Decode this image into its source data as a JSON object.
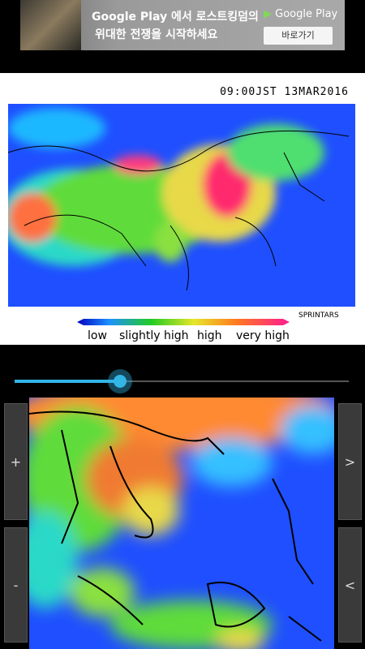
{
  "ad": {
    "line1": "Google Play 에서 로스트킹덤의",
    "line2": "위대한 전쟁을 시작하세요",
    "store": "Google Play",
    "button": "바로가기"
  },
  "map": {
    "timestamp": "09:00JST 13MAR2016",
    "credit": "SPRINTARS",
    "legend": [
      "low",
      "slightly high",
      "high",
      "very high"
    ]
  },
  "controls": {
    "zoom_in": "+",
    "zoom_out": "-",
    "next": ">",
    "prev": "<"
  }
}
